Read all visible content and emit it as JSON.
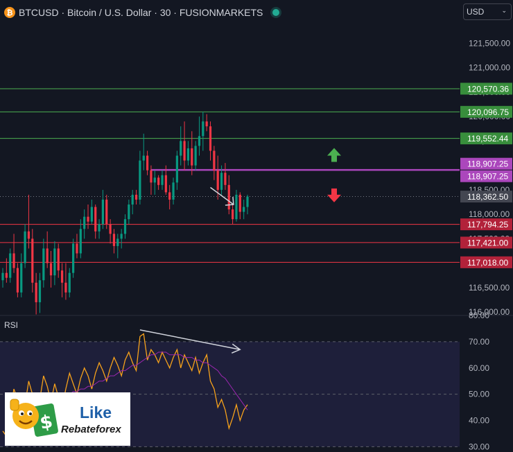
{
  "header": {
    "coin_glyph": "₿",
    "title": "BTCUSD · Bitcoin / U.S. Dollar · 30 · FUSIONMARKETS"
  },
  "currency": {
    "label": "USD"
  },
  "rsi_label": "RSI",
  "logo": {
    "line1": "Like",
    "line2": "Rebateforex"
  },
  "icons": [
    "bitcoin-icon",
    "live-dot-icon",
    "chevron-down-icon",
    "up-arrow-icon",
    "down-arrow-icon",
    "thumbs-up-mascot-icon",
    "dollar-card-icon"
  ],
  "colors": {
    "background": "#131722",
    "up": "#089981",
    "down": "#f23645",
    "support": "#f23645",
    "resistance": "#4caf50",
    "level": "#ab47bc",
    "rsi": "#f7a21b",
    "rsi_ma": "#9c27b0"
  },
  "chart_data": [
    {
      "type": "candlestick",
      "yaxis_ticks": [
        116000,
        116500,
        117000,
        117500,
        118000,
        118500,
        119000,
        119500,
        120000,
        120500,
        121000,
        121500
      ],
      "yaxis_visible_labels": [
        "121,500.00",
        "121,000.00",
        "118,500.00",
        "118,000.00",
        "116,500.00",
        "116,000.00"
      ],
      "ylim": [
        115930,
        121960
      ],
      "horizontal_levels": [
        {
          "value": 120570.36,
          "label": "120,570.36",
          "kind": "resistance"
        },
        {
          "value": 120096.75,
          "label": "120,096.75",
          "kind": "resistance"
        },
        {
          "value": 119552.44,
          "label": "119,552.44",
          "kind": "resistance"
        },
        {
          "value": 118907.25,
          "label": "118,907.25",
          "kind": "level"
        },
        {
          "value": 117794.25,
          "label": "117,794.25",
          "kind": "support"
        },
        {
          "value": 117421.0,
          "label": "117,421.00",
          "kind": "support"
        },
        {
          "value": 117018.0,
          "label": "117,018.00",
          "kind": "support"
        }
      ],
      "level_second_label": "118,907.25",
      "last_price": {
        "value": 118362.5,
        "label": "118,362.50"
      },
      "candles": [
        [
          116650,
          116900,
          116500,
          116800
        ],
        [
          116800,
          117100,
          116600,
          116700
        ],
        [
          116700,
          117300,
          116600,
          117200
        ],
        [
          117200,
          117600,
          116800,
          116900
        ],
        [
          116900,
          117000,
          116300,
          116400
        ],
        [
          116400,
          117200,
          116300,
          117000
        ],
        [
          117000,
          117800,
          116900,
          117650
        ],
        [
          117650,
          118400,
          117300,
          117500
        ],
        [
          117500,
          117700,
          116400,
          116600
        ],
        [
          116600,
          116800,
          115950,
          116200
        ],
        [
          116200,
          116800,
          115980,
          116650
        ],
        [
          116650,
          117500,
          116500,
          117300
        ],
        [
          117300,
          117650,
          116900,
          117000
        ],
        [
          117000,
          117250,
          116500,
          116750
        ],
        [
          116750,
          117450,
          116550,
          117300
        ],
        [
          117300,
          117400,
          116700,
          116850
        ],
        [
          116850,
          117000,
          116300,
          116600
        ],
        [
          116600,
          117000,
          116250,
          116400
        ],
        [
          116400,
          116900,
          116300,
          116800
        ],
        [
          116800,
          117500,
          116700,
          117400
        ],
        [
          117400,
          117600,
          117100,
          117200
        ],
        [
          117200,
          117900,
          117100,
          117700
        ],
        [
          117700,
          118100,
          117500,
          117950
        ],
        [
          117950,
          118200,
          117700,
          117850
        ],
        [
          117850,
          118300,
          117800,
          118150
        ],
        [
          118150,
          118200,
          117500,
          117650
        ],
        [
          117650,
          117900,
          117500,
          117800
        ],
        [
          117800,
          118500,
          117700,
          118300
        ],
        [
          118300,
          118400,
          117700,
          117800
        ],
        [
          117800,
          117900,
          117400,
          117600
        ],
        [
          117600,
          117700,
          117200,
          117350
        ],
        [
          117350,
          117600,
          117100,
          117500
        ],
        [
          117500,
          117700,
          117300,
          117600
        ],
        [
          117600,
          118000,
          117500,
          117900
        ],
        [
          117900,
          118300,
          117800,
          118200
        ],
        [
          118200,
          118500,
          118000,
          118400
        ],
        [
          118400,
          118500,
          118200,
          118300
        ],
        [
          118300,
          119300,
          118200,
          119100
        ],
        [
          119100,
          119650,
          118900,
          119200
        ],
        [
          119200,
          119300,
          118800,
          118900
        ],
        [
          118900,
          119000,
          118400,
          118650
        ],
        [
          118650,
          118900,
          118400,
          118750
        ],
        [
          118750,
          118800,
          118500,
          118600
        ],
        [
          118600,
          118900,
          118500,
          118800
        ],
        [
          118800,
          119000,
          118400,
          118450
        ],
        [
          118450,
          118600,
          118100,
          118300
        ],
        [
          118300,
          118750,
          118200,
          118650
        ],
        [
          118650,
          119300,
          118500,
          119200
        ],
        [
          119200,
          119800,
          119000,
          119500
        ],
        [
          119500,
          119900,
          118900,
          119100
        ],
        [
          119100,
          119500,
          119000,
          119350
        ],
        [
          119350,
          119700,
          118800,
          119000
        ],
        [
          119000,
          119500,
          118900,
          119400
        ],
        [
          119400,
          120000,
          119200,
          119600
        ],
        [
          119600,
          120100,
          119300,
          119900
        ],
        [
          119900,
          120050,
          119700,
          119800
        ],
        [
          119800,
          119900,
          119100,
          119300
        ],
        [
          119300,
          119400,
          118700,
          118900
        ],
        [
          118900,
          119200,
          118300,
          118500
        ],
        [
          118500,
          119000,
          118400,
          118850
        ],
        [
          118850,
          119050,
          118500,
          118600
        ],
        [
          118600,
          118800,
          118000,
          118100
        ],
        [
          118100,
          118200,
          117800,
          117900
        ],
        [
          117900,
          118500,
          117850,
          118400
        ],
        [
          118400,
          118450,
          117900,
          118050
        ],
        [
          118050,
          118300,
          117900,
          118150
        ],
        [
          118150,
          118400,
          118000,
          118362.5
        ]
      ],
      "drawings": [
        {
          "name": "support-arrow-note",
          "kind": "white-arrow",
          "from": [
            56,
            118550
          ],
          "to": [
            60,
            118200
          ]
        },
        {
          "name": "up-arrow-icon",
          "kind": "green-arrow",
          "at": [
            67,
            119200
          ]
        },
        {
          "name": "down-arrow-icon",
          "kind": "red-arrow",
          "at": [
            67,
            118400
          ]
        }
      ]
    },
    {
      "type": "line",
      "name": "RSI",
      "ylim": [
        28,
        80
      ],
      "yaxis_ticks": [
        30,
        40,
        50,
        60,
        70,
        80
      ],
      "yaxis_labels": [
        "30.00",
        "40.00",
        "50.00",
        "60.00",
        "70.00",
        "80.00"
      ],
      "band": [
        30,
        70
      ],
      "midline": 50,
      "series": [
        {
          "key": "rsi",
          "values": [
            36,
            34,
            42,
            52,
            48,
            39,
            46,
            55,
            50,
            44,
            48,
            57,
            53,
            47,
            54,
            49,
            45,
            52,
            58,
            54,
            50,
            56,
            60,
            57,
            52,
            58,
            62,
            59,
            55,
            60,
            64,
            61,
            57,
            63,
            66,
            62,
            59,
            72,
            73,
            63,
            67,
            65,
            62,
            66,
            63,
            60,
            64,
            67,
            60,
            65,
            62,
            59,
            64,
            58,
            62,
            65,
            55,
            52,
            45,
            48,
            44,
            37,
            41,
            46,
            40,
            44,
            46
          ]
        },
        {
          "key": "rsi_ma",
          "values": [
            null,
            null,
            null,
            null,
            null,
            null,
            null,
            null,
            null,
            null,
            null,
            null,
            null,
            null,
            48,
            49,
            49,
            50,
            50,
            51,
            51,
            52,
            52,
            53,
            53,
            54,
            55,
            55,
            56,
            57,
            57,
            58,
            59,
            59,
            60,
            61,
            61,
            62,
            63,
            64,
            65,
            65,
            66,
            66,
            66,
            65,
            65,
            65,
            65,
            64,
            64,
            64,
            63,
            63,
            62,
            62,
            61,
            60,
            59,
            57,
            56,
            54,
            52,
            50,
            48,
            46,
            44
          ]
        }
      ],
      "drawings": [
        {
          "name": "divergence-arrow",
          "kind": "white-arrow",
          "from": [
            37,
            74.5
          ],
          "to": [
            61,
            67
          ]
        }
      ]
    }
  ]
}
